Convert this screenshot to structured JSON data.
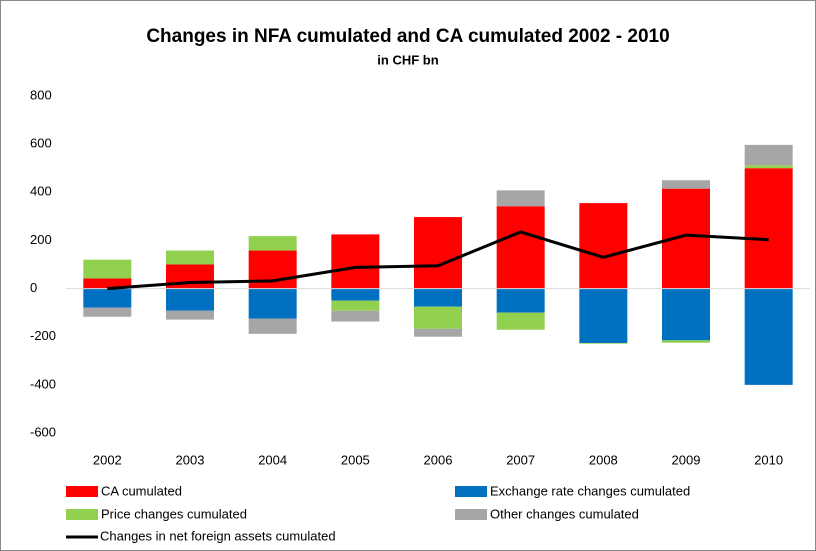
{
  "chart_data": {
    "type": "bar",
    "title": "Changes in NFA cumulated and CA cumulated 2002 - 2010",
    "subtitle": "in CHF bn",
    "stacked": true,
    "categories": [
      "2002",
      "2003",
      "2004",
      "2005",
      "2006",
      "2007",
      "2008",
      "2009",
      "2010"
    ],
    "series": [
      {
        "name": "CA cumulated",
        "color": "#ff0000",
        "values": [
          42,
          100,
          158,
          225,
          297,
          342,
          355,
          415,
          500
        ]
      },
      {
        "name": "Exchange rate changes cumulated",
        "color": "#0070c0",
        "values": [
          -79,
          -92,
          -125,
          -50,
          -75,
          -100,
          -226,
          -215,
          -400
        ]
      },
      {
        "name": "Price changes cumulated",
        "color": "#92d050",
        "values": [
          78,
          58,
          60,
          -42,
          -92,
          -71,
          -3,
          -10,
          12
        ]
      },
      {
        "name": "Other changes cumulated",
        "color": "#a6a6a6",
        "values": [
          -38,
          -37,
          -63,
          -45,
          -33,
          66,
          0,
          35,
          85
        ]
      }
    ],
    "line": {
      "name": "Changes in net foreign assets cumulated",
      "color": "#000000",
      "values": [
        0,
        25,
        32,
        88,
        95,
        235,
        130,
        222,
        203
      ]
    },
    "ylim": [
      -600,
      800
    ],
    "yticks": [
      -600,
      -400,
      -200,
      0,
      200,
      400,
      600,
      800
    ]
  }
}
